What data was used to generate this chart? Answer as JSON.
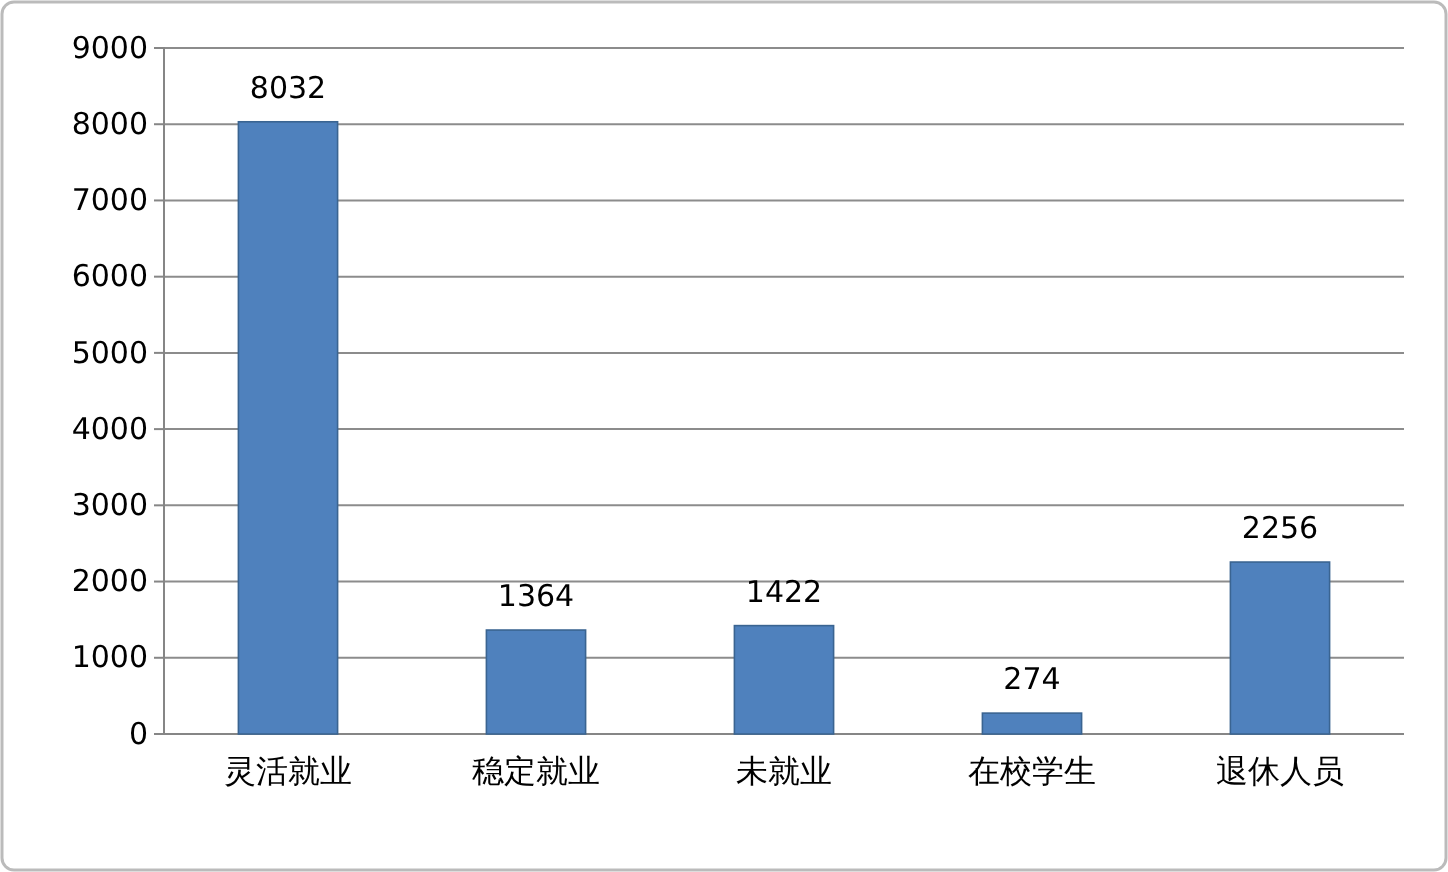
{
  "chart_data": {
    "type": "bar",
    "categories": [
      "灵活就业",
      "稳定就业",
      "未就业",
      "在校学生",
      "退休人员"
    ],
    "values": [
      8032,
      1364,
      1422,
      274,
      2256
    ],
    "color": "#4f81bd",
    "ylim": [
      0,
      9000
    ],
    "yticks": [
      0,
      1000,
      2000,
      3000,
      4000,
      5000,
      6000,
      7000,
      8000,
      9000
    ],
    "grid": "y",
    "data_labels": true
  }
}
